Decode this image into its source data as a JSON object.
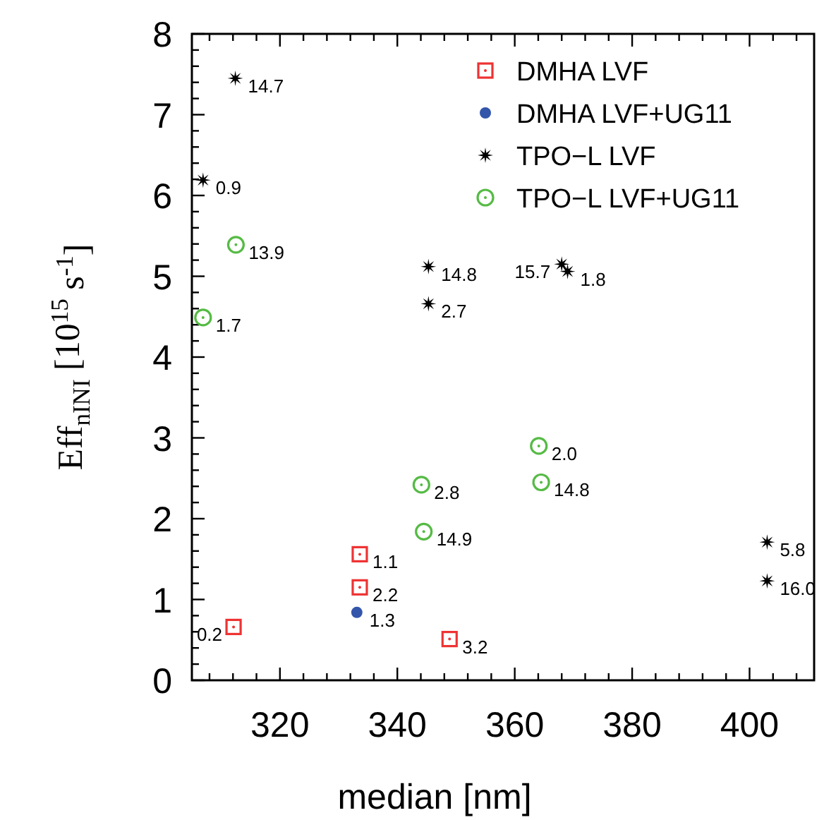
{
  "chart_data": {
    "type": "scatter",
    "xlabel": "median [nm]",
    "ylabel": "Eff$_{n}$$_{INI}$ [10$^{15}$ s$^{-1}$]",
    "xlim": [
      305,
      411
    ],
    "ylim": [
      0,
      8
    ],
    "xticks": [
      {
        "value": 308,
        "label": null
      },
      {
        "value": 312,
        "label": null
      },
      {
        "value": 316,
        "label": null
      },
      320,
      {
        "value": 324,
        "label": null
      },
      {
        "value": 328,
        "label": null
      },
      {
        "value": 332,
        "label": null
      },
      {
        "value": 336,
        "label": null
      },
      340,
      {
        "value": 344,
        "label": null
      },
      {
        "value": 348,
        "label": null
      },
      {
        "value": 352,
        "label": null
      },
      {
        "value": 356,
        "label": null
      },
      360,
      {
        "value": 364,
        "label": null
      },
      {
        "value": 368,
        "label": null
      },
      {
        "value": 372,
        "label": null
      },
      {
        "value": 376,
        "label": null
      },
      380,
      {
        "value": 384,
        "label": null
      },
      {
        "value": 388,
        "label": null
      },
      {
        "value": 392,
        "label": null
      },
      {
        "value": 396,
        "label": null
      },
      400,
      {
        "value": 404,
        "label": null
      },
      {
        "value": 408,
        "label": null
      }
    ],
    "yticks": [
      0,
      {
        "value": 0.2,
        "label": null
      },
      {
        "value": 0.4,
        "label": null
      },
      {
        "value": 0.6,
        "label": null
      },
      {
        "value": 0.8,
        "label": null
      },
      1,
      {
        "value": 1.2,
        "label": null
      },
      {
        "value": 1.4,
        "label": null
      },
      {
        "value": 1.6,
        "label": null
      },
      {
        "value": 1.8,
        "label": null
      },
      2,
      {
        "value": 2.2,
        "label": null
      },
      {
        "value": 2.4,
        "label": null
      },
      {
        "value": 2.6,
        "label": null
      },
      {
        "value": 2.8,
        "label": null
      },
      3,
      {
        "value": 3.2,
        "label": null
      },
      {
        "value": 3.4,
        "label": null
      },
      {
        "value": 3.6,
        "label": null
      },
      {
        "value": 3.8,
        "label": null
      },
      4,
      {
        "value": 4.2,
        "label": null
      },
      {
        "value": 4.4,
        "label": null
      },
      {
        "value": 4.6,
        "label": null
      },
      {
        "value": 4.8,
        "label": null
      },
      5,
      {
        "value": 5.2,
        "label": null
      },
      {
        "value": 5.4,
        "label": null
      },
      {
        "value": 5.6,
        "label": null
      },
      {
        "value": 5.8,
        "label": null
      },
      6,
      {
        "value": 6.2,
        "label": null
      },
      {
        "value": 6.4,
        "label": null
      },
      {
        "value": 6.6,
        "label": null
      },
      {
        "value": 6.8,
        "label": null
      },
      7,
      {
        "value": 7.2,
        "label": null
      },
      {
        "value": 7.4,
        "label": null
      },
      {
        "value": 7.6,
        "label": null
      },
      {
        "value": 7.8,
        "label": null
      },
      8
    ],
    "grid": false,
    "legend": "top right",
    "series": [
      {
        "name": "DMHA LVF",
        "color": "#ee3333",
        "marker": "square",
        "x": [
          312.1,
          333.6,
          333.6,
          348.9
        ],
        "values": [
          0.66,
          1.56,
          1.15,
          0.51
        ]
      },
      {
        "name": "DMHA LVF+UG11",
        "color": "#3355aa",
        "marker": "circle",
        "x": [
          333.1
        ],
        "values": [
          0.84
        ]
      },
      {
        "name": "TPO−L LVF",
        "color": "#000000",
        "marker": "star",
        "x": [
          312.4,
          306.9,
          345.3,
          345.3,
          368.0,
          369.0,
          403.0,
          403.0
        ],
        "values": [
          7.45,
          6.19,
          5.12,
          4.66,
          5.15,
          5.06,
          1.71,
          1.23
        ]
      },
      {
        "name": "TPO−L LVF+UG11",
        "color": "#55bb44",
        "marker": "circle",
        "x": [
          312.5,
          306.9,
          344.1,
          344.5,
          364.1,
          364.5
        ],
        "values": [
          5.39,
          4.49,
          2.42,
          1.84,
          2.9,
          2.45
        ]
      }
    ],
    "annotations": [
      {
        "text": "0.2",
        "x": 312.1,
        "y": 0.66
      },
      {
        "text": "1.1",
        "x": 333.6,
        "y": 1.56
      },
      {
        "text": "2.2",
        "x": 333.6,
        "y": 1.15
      },
      {
        "text": "3.2",
        "x": 348.9,
        "y": 0.51
      },
      {
        "text": "1.3",
        "x": 333.1,
        "y": 0.84
      },
      {
        "text": "14.7",
        "x": 312.4,
        "y": 7.45
      },
      {
        "text": "0.9",
        "x": 306.9,
        "y": 6.19
      },
      {
        "text": "14.8",
        "x": 345.3,
        "y": 5.12
      },
      {
        "text": "2.7",
        "x": 345.3,
        "y": 4.66
      },
      {
        "text": "15.7",
        "x": 368.0,
        "y": 5.15
      },
      {
        "text": "1.8",
        "x": 369.0,
        "y": 5.06
      },
      {
        "text": "5.8",
        "x": 403.0,
        "y": 1.71
      },
      {
        "text": "16.0",
        "x": 403.0,
        "y": 1.23
      },
      {
        "text": "13.9",
        "x": 312.5,
        "y": 5.39
      },
      {
        "text": "1.7",
        "x": 306.9,
        "y": 4.49
      },
      {
        "text": "2.8",
        "x": 344.1,
        "y": 2.42
      },
      {
        "text": "14.9",
        "x": 344.5,
        "y": 1.84
      },
      {
        "text": "2.0",
        "x": 364.1,
        "y": 2.9
      },
      {
        "text": "14.8",
        "x": 364.5,
        "y": 2.45
      }
    ]
  }
}
